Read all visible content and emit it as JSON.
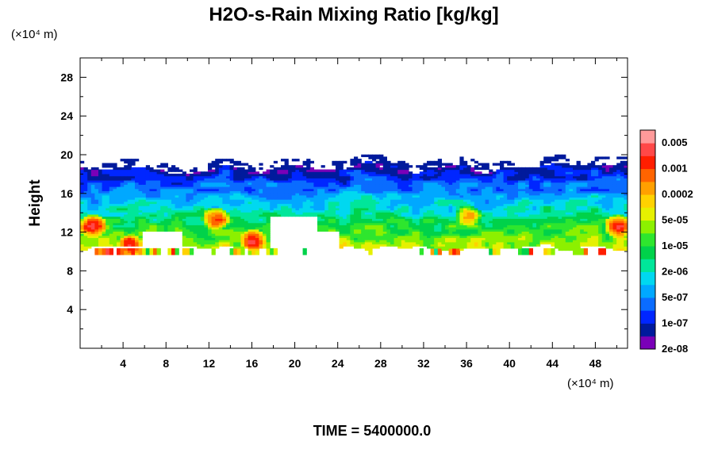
{
  "chart_data": {
    "type": "heatmap",
    "title": "H2O-s-Rain Mixing Ratio [kg/kg]",
    "xlabel": "",
    "ylabel": "Height",
    "x_unit": "(×10⁴ m)",
    "y_unit": "(×10⁴ m)",
    "xlim": [
      0,
      51
    ],
    "ylim": [
      0,
      30
    ],
    "x_ticks": [
      4,
      8,
      12,
      16,
      20,
      24,
      28,
      32,
      36,
      40,
      44,
      48
    ],
    "y_ticks": [
      4,
      8,
      12,
      16,
      20,
      24,
      28
    ],
    "time_label": "TIME = 5400000.0",
    "colorbar": {
      "labels": [
        "0.005",
        "0.001",
        "0.0002",
        "5e-05",
        "1e-05",
        "2e-06",
        "5e-07",
        "1e-07",
        "2e-08"
      ],
      "colors": [
        "#7a00b8",
        "#001a9c",
        "#0026ff",
        "#0a6cff",
        "#00a8ff",
        "#00d8f0",
        "#00e69a",
        "#00d24a",
        "#2ee62e",
        "#8cf000",
        "#e6f000",
        "#ffd200",
        "#ffa000",
        "#ff6400",
        "#ff1e00",
        "#ff4848",
        "#ff9a9a"
      ]
    },
    "field": {
      "description_levels": "cloud-layer mixing ratio, log-scaled level index 0-16",
      "base_height": 10,
      "top_height": 18.5,
      "upper_band_height": [
        18.2,
        19.2
      ],
      "lower_band_height": [
        9.5,
        10.2
      ],
      "cores": [
        {
          "x": 1,
          "y": 12.5,
          "level": 15
        },
        {
          "x": 4.5,
          "y": 10.5,
          "level": 15
        },
        {
          "x": 12.5,
          "y": 13.3,
          "level": 14
        },
        {
          "x": 16,
          "y": 11,
          "level": 15
        },
        {
          "x": 36,
          "y": 13.5,
          "level": 12
        },
        {
          "x": 50,
          "y": 12.5,
          "level": 15
        }
      ]
    }
  }
}
